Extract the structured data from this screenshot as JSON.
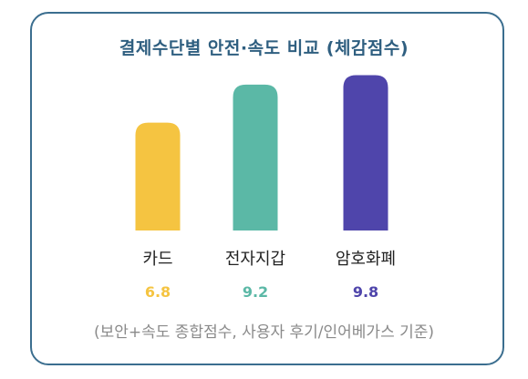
{
  "chart_data": {
    "type": "bar",
    "title": "결제수단별 안전·속도 비교 (체감점수)",
    "categories": [
      "카드",
      "전자지갑",
      "암호화폐"
    ],
    "values": [
      6.8,
      9.2,
      9.8
    ],
    "value_labels": [
      "6.8",
      "9.2",
      "9.8"
    ],
    "colors": [
      "#f5c441",
      "#5bb8a6",
      "#4f45ab"
    ],
    "ylim": [
      0,
      10
    ],
    "grid": false,
    "note": "(보안+속도 종합점수, 사용자 후기/인어베가스 기준)"
  }
}
